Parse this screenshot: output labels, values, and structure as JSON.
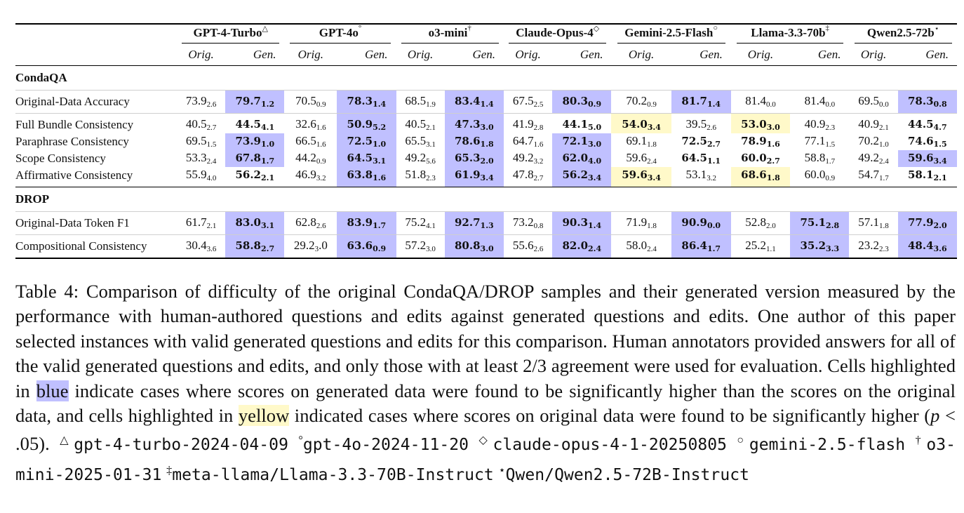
{
  "table": {
    "models": [
      {
        "name": "GPT-4-Turbo",
        "mark": "△"
      },
      {
        "name": "GPT-4o",
        "mark": "°"
      },
      {
        "name": "o3-mini",
        "mark": "†"
      },
      {
        "name": "Claude-Opus-4",
        "mark": "◇"
      },
      {
        "name": "Gemini-2.5-Flash",
        "mark": "○"
      },
      {
        "name": "Llama-3.3-70b",
        "mark": "‡"
      },
      {
        "name": "Qwen2.5-72b",
        "mark": "⋆"
      }
    ],
    "sub_orig": "Orig.",
    "sub_gen": "Gen.",
    "sections": [
      {
        "title": "CondaQA",
        "groups": [
          [
            {
              "label": "Original-Data Accuracy",
              "cells": [
                {
                  "v": "73.9",
                  "s": "2.6",
                  "b": false,
                  "h": ""
                },
                {
                  "v": "79.7",
                  "s": "1.2",
                  "b": true,
                  "h": "blue"
                },
                {
                  "v": "70.5",
                  "s": "0.9",
                  "b": false,
                  "h": ""
                },
                {
                  "v": "78.3",
                  "s": "1.4",
                  "b": true,
                  "h": "blue"
                },
                {
                  "v": "68.5",
                  "s": "1.9",
                  "b": false,
                  "h": ""
                },
                {
                  "v": "83.4",
                  "s": "1.4",
                  "b": true,
                  "h": "blue"
                },
                {
                  "v": "67.5",
                  "s": "2.5",
                  "b": false,
                  "h": ""
                },
                {
                  "v": "80.3",
                  "s": "0.9",
                  "b": true,
                  "h": "blue"
                },
                {
                  "v": "70.2",
                  "s": "0.9",
                  "b": false,
                  "h": ""
                },
                {
                  "v": "81.7",
                  "s": "1.4",
                  "b": true,
                  "h": "blue"
                },
                {
                  "v": "81.4",
                  "s": "0.0",
                  "b": false,
                  "h": ""
                },
                {
                  "v": "81.4",
                  "s": "0.0",
                  "b": false,
                  "h": ""
                },
                {
                  "v": "69.5",
                  "s": "0.0",
                  "b": false,
                  "h": ""
                },
                {
                  "v": "78.3",
                  "s": "0.8",
                  "b": true,
                  "h": "blue"
                }
              ]
            }
          ],
          [
            {
              "label": "Full Bundle Consistency",
              "cells": [
                {
                  "v": "40.5",
                  "s": "2.7",
                  "b": false,
                  "h": ""
                },
                {
                  "v": "44.5",
                  "s": "4.1",
                  "b": true,
                  "h": ""
                },
                {
                  "v": "32.6",
                  "s": "1.6",
                  "b": false,
                  "h": ""
                },
                {
                  "v": "50.9",
                  "s": "5.2",
                  "b": true,
                  "h": "blue"
                },
                {
                  "v": "40.5",
                  "s": "2.1",
                  "b": false,
                  "h": ""
                },
                {
                  "v": "47.3",
                  "s": "3.0",
                  "b": true,
                  "h": "blue"
                },
                {
                  "v": "41.9",
                  "s": "2.8",
                  "b": false,
                  "h": ""
                },
                {
                  "v": "44.1",
                  "s": "5.0",
                  "b": true,
                  "h": ""
                },
                {
                  "v": "54.0",
                  "s": "3.4",
                  "b": true,
                  "h": "yellow"
                },
                {
                  "v": "39.5",
                  "s": "2.6",
                  "b": false,
                  "h": ""
                },
                {
                  "v": "53.0",
                  "s": "3.0",
                  "b": true,
                  "h": "yellow"
                },
                {
                  "v": "40.9",
                  "s": "2.3",
                  "b": false,
                  "h": ""
                },
                {
                  "v": "40.9",
                  "s": "2.1",
                  "b": false,
                  "h": ""
                },
                {
                  "v": "44.5",
                  "s": "4.7",
                  "b": true,
                  "h": ""
                }
              ]
            },
            {
              "label": "Paraphrase Consistency",
              "cells": [
                {
                  "v": "69.5",
                  "s": "1.5",
                  "b": false,
                  "h": ""
                },
                {
                  "v": "73.9",
                  "s": "1.0",
                  "b": true,
                  "h": "blue"
                },
                {
                  "v": "66.5",
                  "s": "1.6",
                  "b": false,
                  "h": ""
                },
                {
                  "v": "72.5",
                  "s": "1.0",
                  "b": true,
                  "h": "blue"
                },
                {
                  "v": "65.5",
                  "s": "3.1",
                  "b": false,
                  "h": ""
                },
                {
                  "v": "78.6",
                  "s": "1.8",
                  "b": true,
                  "h": "blue"
                },
                {
                  "v": "64.7",
                  "s": "1.6",
                  "b": false,
                  "h": ""
                },
                {
                  "v": "72.1",
                  "s": "3.0",
                  "b": true,
                  "h": "blue"
                },
                {
                  "v": "69.1",
                  "s": "1.8",
                  "b": false,
                  "h": ""
                },
                {
                  "v": "72.5",
                  "s": "2.7",
                  "b": true,
                  "h": ""
                },
                {
                  "v": "78.9",
                  "s": "1.6",
                  "b": true,
                  "h": ""
                },
                {
                  "v": "77.1",
                  "s": "1.5",
                  "b": false,
                  "h": ""
                },
                {
                  "v": "70.2",
                  "s": "1.0",
                  "b": false,
                  "h": ""
                },
                {
                  "v": "74.6",
                  "s": "1.5",
                  "b": true,
                  "h": ""
                }
              ]
            },
            {
              "label": "Scope Consistency",
              "cells": [
                {
                  "v": "53.3",
                  "s": "2.4",
                  "b": false,
                  "h": ""
                },
                {
                  "v": "67.8",
                  "s": "1.7",
                  "b": true,
                  "h": "blue"
                },
                {
                  "v": "44.2",
                  "s": "0.9",
                  "b": false,
                  "h": ""
                },
                {
                  "v": "64.5",
                  "s": "3.1",
                  "b": true,
                  "h": "blue"
                },
                {
                  "v": "49.2",
                  "s": "5.6",
                  "b": false,
                  "h": ""
                },
                {
                  "v": "65.3",
                  "s": "2.0",
                  "b": true,
                  "h": "blue"
                },
                {
                  "v": "49.2",
                  "s": "3.2",
                  "b": false,
                  "h": ""
                },
                {
                  "v": "62.0",
                  "s": "4.0",
                  "b": true,
                  "h": "blue"
                },
                {
                  "v": "59.6",
                  "s": "2.4",
                  "b": false,
                  "h": ""
                },
                {
                  "v": "64.5",
                  "s": "1.1",
                  "b": true,
                  "h": ""
                },
                {
                  "v": "60.0",
                  "s": "2.7",
                  "b": true,
                  "h": ""
                },
                {
                  "v": "58.8",
                  "s": "1.7",
                  "b": false,
                  "h": ""
                },
                {
                  "v": "49.2",
                  "s": "2.4",
                  "b": false,
                  "h": ""
                },
                {
                  "v": "59.6",
                  "s": "3.4",
                  "b": true,
                  "h": "blue"
                }
              ]
            },
            {
              "label": "Affirmative Consistency",
              "cells": [
                {
                  "v": "55.9",
                  "s": "4.0",
                  "b": false,
                  "h": ""
                },
                {
                  "v": "56.2",
                  "s": "2.1",
                  "b": true,
                  "h": ""
                },
                {
                  "v": "46.9",
                  "s": "3.2",
                  "b": false,
                  "h": ""
                },
                {
                  "v": "63.8",
                  "s": "1.6",
                  "b": true,
                  "h": "blue"
                },
                {
                  "v": "51.8",
                  "s": "2.3",
                  "b": false,
                  "h": ""
                },
                {
                  "v": "61.9",
                  "s": "3.4",
                  "b": true,
                  "h": "blue"
                },
                {
                  "v": "47.8",
                  "s": "2.7",
                  "b": false,
                  "h": ""
                },
                {
                  "v": "56.2",
                  "s": "3.4",
                  "b": true,
                  "h": "blue"
                },
                {
                  "v": "59.6",
                  "s": "3.4",
                  "b": true,
                  "h": "yellow"
                },
                {
                  "v": "53.1",
                  "s": "3.2",
                  "b": false,
                  "h": ""
                },
                {
                  "v": "68.6",
                  "s": "1.8",
                  "b": true,
                  "h": "yellow"
                },
                {
                  "v": "60.0",
                  "s": "0.9",
                  "b": false,
                  "h": ""
                },
                {
                  "v": "54.7",
                  "s": "1.7",
                  "b": false,
                  "h": ""
                },
                {
                  "v": "58.1",
                  "s": "2.1",
                  "b": true,
                  "h": ""
                }
              ]
            }
          ]
        ]
      },
      {
        "title": "DROP",
        "groups": [
          [
            {
              "label": "Original-Data Token F1",
              "cells": [
                {
                  "v": "61.7",
                  "s": "2.1",
                  "b": false,
                  "h": ""
                },
                {
                  "v": "83.0",
                  "s": "3.1",
                  "b": true,
                  "h": "blue"
                },
                {
                  "v": "62.8",
                  "s": "2.6",
                  "b": false,
                  "h": ""
                },
                {
                  "v": "83.9",
                  "s": "1.7",
                  "b": true,
                  "h": "blue"
                },
                {
                  "v": "75.2",
                  "s": "4.1",
                  "b": false,
                  "h": ""
                },
                {
                  "v": "92.7",
                  "s": "1.3",
                  "b": true,
                  "h": "blue"
                },
                {
                  "v": "73.2",
                  "s": "0.8",
                  "b": false,
                  "h": ""
                },
                {
                  "v": "90.3",
                  "s": "1.4",
                  "b": true,
                  "h": "blue"
                },
                {
                  "v": "71.9",
                  "s": "1.8",
                  "b": false,
                  "h": ""
                },
                {
                  "v": "90.9",
                  "s": "0.0",
                  "b": true,
                  "h": "blue"
                },
                {
                  "v": "52.8",
                  "s": "2.0",
                  "b": false,
                  "h": ""
                },
                {
                  "v": "75.1",
                  "s": "2.8",
                  "b": true,
                  "h": "blue"
                },
                {
                  "v": "57.1",
                  "s": "1.8",
                  "b": false,
                  "h": ""
                },
                {
                  "v": "77.9",
                  "s": "2.0",
                  "b": true,
                  "h": "blue"
                }
              ]
            }
          ],
          [
            {
              "label": "Compositional Consistency",
              "cells": [
                {
                  "v": "30.4",
                  "s": "3.6",
                  "b": false,
                  "h": ""
                },
                {
                  "v": "58.8",
                  "s": "2.7",
                  "b": true,
                  "h": "blue"
                },
                {
                  "v": "29.2",
                  "s": "3",
                  "b": false,
                  "h": "",
                  "tail": ".0"
                },
                {
                  "v": "63.6",
                  "s": "0.9",
                  "b": true,
                  "h": "blue"
                },
                {
                  "v": "57.2",
                  "s": "3.0",
                  "b": false,
                  "h": ""
                },
                {
                  "v": "80.8",
                  "s": "3.0",
                  "b": true,
                  "h": "blue"
                },
                {
                  "v": "55.6",
                  "s": "2.6",
                  "b": false,
                  "h": ""
                },
                {
                  "v": "82.0",
                  "s": "2.4",
                  "b": true,
                  "h": "blue"
                },
                {
                  "v": "58.0",
                  "s": "2.4",
                  "b": false,
                  "h": ""
                },
                {
                  "v": "86.4",
                  "s": "1.7",
                  "b": true,
                  "h": "blue"
                },
                {
                  "v": "25.2",
                  "s": "1.1",
                  "b": false,
                  "h": ""
                },
                {
                  "v": "35.2",
                  "s": "3.3",
                  "b": true,
                  "h": "blue"
                },
                {
                  "v": "23.2",
                  "s": "2.3",
                  "b": false,
                  "h": ""
                },
                {
                  "v": "48.4",
                  "s": "3.6",
                  "b": true,
                  "h": "blue"
                }
              ]
            }
          ]
        ]
      }
    ]
  },
  "caption": {
    "lead": "Table 4: Comparison of difficulty of the original CondaQA/DROP samples and their generated version measured by the performance with human-authored questions and edits against generated questions and edits. One author of this paper selected instances with valid generated questions and edits for this comparison. Human annotators provided answers for all of the valid generated questions and edits, and only those with at least 2/3 agreement were used for evaluation. Cells highlighted in ",
    "blue_word": "blue",
    "mid": " indicate cases where scores on generated data were found to be significantly higher than the scores on the original data, and cells highlighted in ",
    "yellow_word": "yellow",
    "tail_pre": " indicated cases where scores on original data were found to be significantly higher (",
    "p_var": "p",
    "tail_post": " < .05). ",
    "footnotes": [
      {
        "mark": "△",
        "text": "gpt-4-turbo-2024-04-09"
      },
      {
        "mark": "°",
        "text": "gpt-4o-2024-11-20"
      },
      {
        "mark": "◇",
        "text": "claude-opus-4-1-20250805"
      },
      {
        "mark": "○",
        "text": "gemini-2.5-flash"
      },
      {
        "mark": "†",
        "text": "o3-mini-2025-01-31"
      },
      {
        "mark": "‡",
        "text": "meta-llama/Llama-3.3-70B-Instruct"
      },
      {
        "mark": "⋆",
        "text": "Qwen/Qwen2.5-72B-Instruct"
      }
    ]
  },
  "colors": {
    "blue_highlight": "#c0c0ff",
    "yellow_highlight": "#fff9c9"
  }
}
